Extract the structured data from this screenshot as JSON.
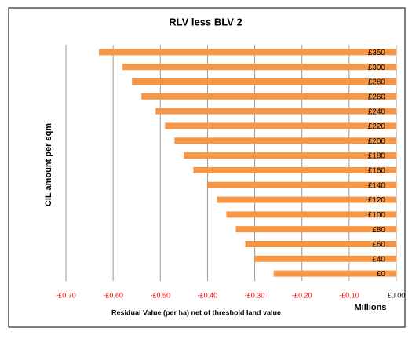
{
  "chart_data": {
    "type": "hbar",
    "title": "RLV less BLV 2",
    "x_label": "Residual Value (per ha) net of threshold land value",
    "y_label": "CIL amount per sqm",
    "display_units": "Millions",
    "categories": [
      "£0",
      "£40",
      "£60",
      "£80",
      "£100",
      "£120",
      "£140",
      "£160",
      "£180",
      "£200",
      "£220",
      "£240",
      "£260",
      "£280",
      "£300",
      "£350"
    ],
    "values": [
      -0.26,
      -0.3,
      -0.32,
      -0.34,
      -0.36,
      -0.38,
      -0.4,
      -0.43,
      -0.45,
      -0.47,
      -0.49,
      -0.51,
      -0.54,
      -0.56,
      -0.58,
      -0.63
    ],
    "color": "#f79646",
    "negative_tick_color": "#ff0000",
    "xlim": [
      -0.7,
      0
    ],
    "xticks": [
      {
        "value": -0.7,
        "label": "-£0.70"
      },
      {
        "value": -0.6,
        "label": "-£0.60"
      },
      {
        "value": -0.5,
        "label": "-£0.50"
      },
      {
        "value": -0.4,
        "label": "-£0.40"
      },
      {
        "value": -0.3,
        "label": "-£0.30"
      },
      {
        "value": -0.2,
        "label": "-£0.20"
      },
      {
        "value": -0.1,
        "label": "-£0.10"
      },
      {
        "value": 0,
        "label": "£0.00"
      }
    ],
    "grid": true
  }
}
